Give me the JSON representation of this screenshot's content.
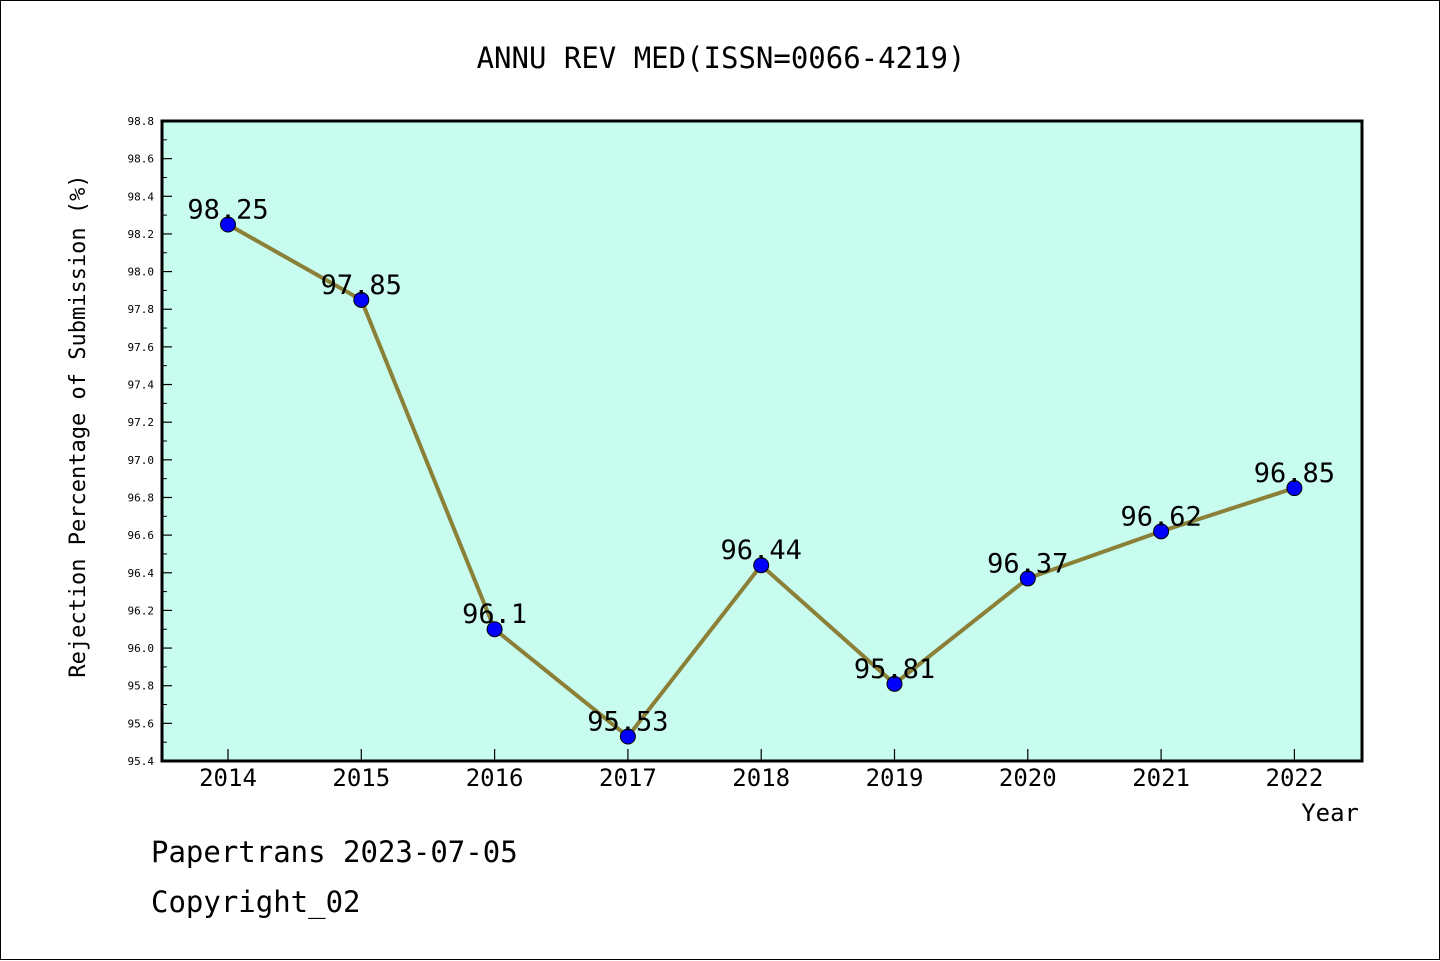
{
  "chart_data": {
    "type": "line",
    "title": "ANNU REV MED(ISSN=0066-4219)",
    "xlabel": "Year",
    "ylabel": "Rejection Percentage of Submission (%)",
    "categories": [
      "2014",
      "2015",
      "2016",
      "2017",
      "2018",
      "2019",
      "2020",
      "2021",
      "2022"
    ],
    "series": [
      {
        "values": [
          98.25,
          97.85,
          96.1,
          95.53,
          96.44,
          95.81,
          96.37,
          96.62,
          96.85
        ],
        "labels": [
          "98.25",
          "97.85",
          "96.1",
          "95.53",
          "96.44",
          "95.81",
          "96.37",
          "96.62",
          "96.85"
        ]
      }
    ],
    "ylim": [
      95.4,
      98.8
    ],
    "yticks": [
      "95.4",
      "95.6",
      "95.8",
      "96.0",
      "96.2",
      "96.4",
      "96.6",
      "96.8",
      "97.0",
      "97.2",
      "97.4",
      "97.6",
      "97.8",
      "98.0",
      "98.2",
      "98.4",
      "98.6",
      "98.8"
    ],
    "grid": false,
    "colors": {
      "plot_background": "#c8fcee",
      "line": "#8b8038",
      "marker": "#0000ff"
    }
  },
  "footer": {
    "source": "Papertrans 2023-07-05",
    "copyright": "Copyright_02"
  }
}
